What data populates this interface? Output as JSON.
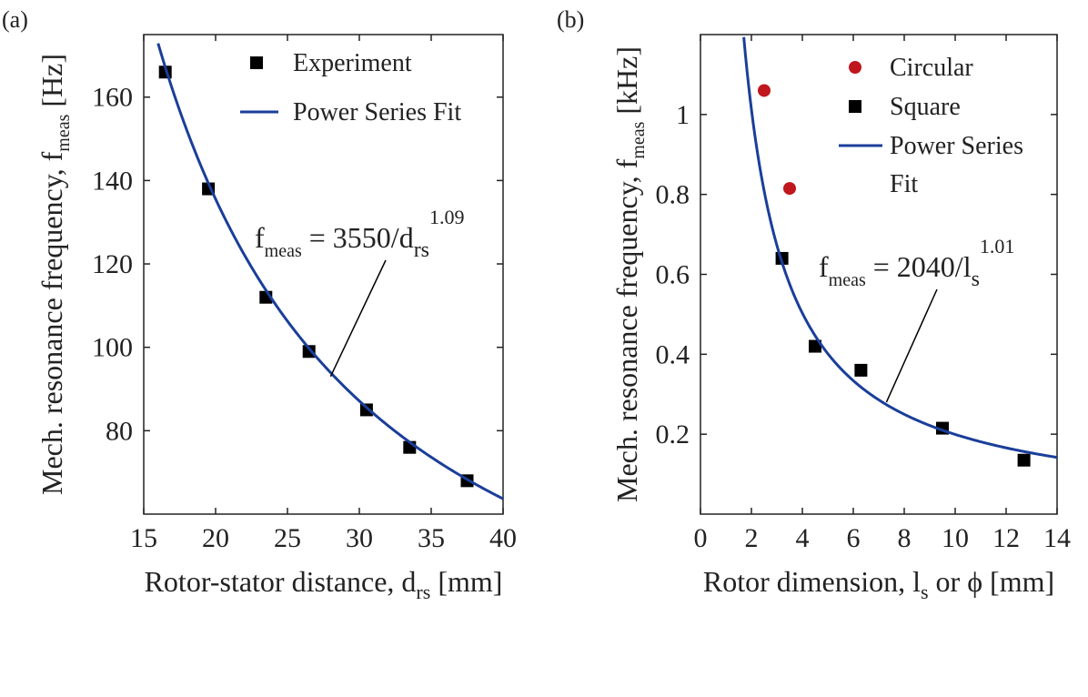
{
  "chart_data": [
    {
      "type": "scatter",
      "panel_label": "(a)",
      "xlabel_main": "Rotor-stator distance, d",
      "xlabel_sub": "rs",
      "xlabel_tail": " [mm]",
      "ylabel_main": "Mech. resonance frequency, f",
      "ylabel_sub": "meas",
      "ylabel_tail": " [Hz]",
      "xlim": [
        15,
        40
      ],
      "ylim": [
        60,
        175
      ],
      "xticks": [
        15,
        20,
        25,
        30,
        35,
        40
      ],
      "yticks": [
        80,
        100,
        120,
        140,
        160
      ],
      "grid": false,
      "legend_position": "top-right",
      "series": [
        {
          "name": "Experiment",
          "marker": "square",
          "color": "#000000",
          "x": [
            16.5,
            19.5,
            23.5,
            26.5,
            30.5,
            33.5,
            37.5
          ],
          "y": [
            166,
            138,
            112,
            99,
            85,
            76,
            68
          ]
        },
        {
          "name": "Power Series Fit",
          "kind": "fit",
          "color": "#1a3e9a",
          "coef": 3550,
          "exponent": 1.09,
          "x_range": [
            16,
            40
          ]
        }
      ],
      "annotation": {
        "prefix": "f",
        "prefix_sub": "meas",
        "body": " = 3550/d",
        "body_sub": "rs",
        "sup": "1.09",
        "arrow_to": [
          28,
          93
        ]
      }
    },
    {
      "type": "scatter",
      "panel_label": "(b)",
      "xlabel_main": "Rotor dimension, l",
      "xlabel_sub": "s",
      "xlabel_tail": " or ϕ [mm]",
      "ylabel_main": "Mech. resonance frequency, f",
      "ylabel_sub": "meas",
      "ylabel_tail": " [kHz]",
      "xlim": [
        0,
        14
      ],
      "ylim": [
        0,
        1.2
      ],
      "xticks": [
        0,
        2,
        4,
        6,
        8,
        10,
        12,
        14
      ],
      "yticks": [
        0.2,
        0.4,
        0.6,
        0.8,
        1
      ],
      "grid": false,
      "legend_position": "top-right",
      "series": [
        {
          "name": "Circular",
          "marker": "circle",
          "color": "#c0161d",
          "x": [
            2.5,
            3.5
          ],
          "y": [
            1.06,
            0.815
          ]
        },
        {
          "name": "Square",
          "marker": "square",
          "color": "#000000",
          "x": [
            3.2,
            4.5,
            6.3,
            9.5,
            12.7
          ],
          "y": [
            0.64,
            0.42,
            0.36,
            0.215,
            0.135
          ]
        },
        {
          "name": "Power Series Fit",
          "kind": "fit",
          "color": "#1a3e9a",
          "coef": 2040,
          "exponent": 1.01,
          "x_range": [
            1.7,
            14
          ]
        }
      ],
      "annotation": {
        "prefix": "f",
        "prefix_sub": "meas",
        "body": " = 2040/l",
        "body_sub": "s",
        "sup": "1.01",
        "arrow_to": [
          7.3,
          0.28
        ]
      }
    }
  ]
}
